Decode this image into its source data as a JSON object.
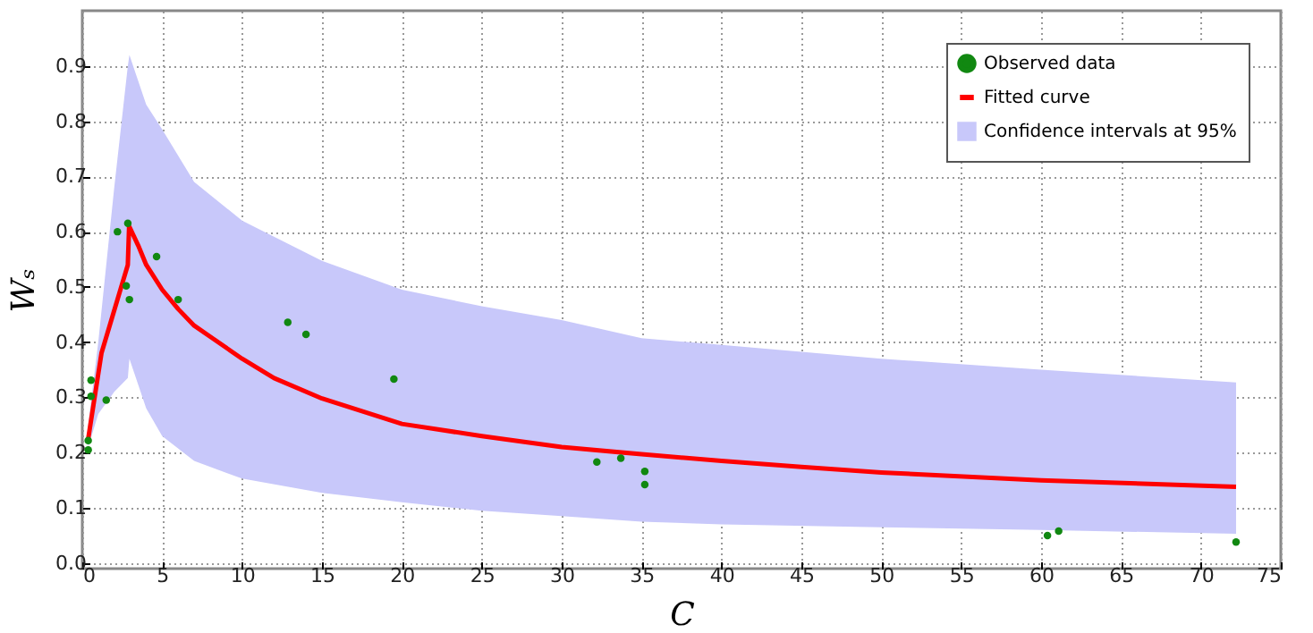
{
  "chart_data": {
    "type": "line",
    "xlabel": "C",
    "ylabel": "Wₛ",
    "xlim": [
      0,
      75
    ],
    "ylim": [
      -0.01,
      1.0
    ],
    "xticks": [
      0,
      5,
      10,
      15,
      20,
      25,
      30,
      35,
      40,
      45,
      50,
      55,
      60,
      65,
      70,
      75
    ],
    "yticks": [
      {
        "value": 0,
        "label": "0.0"
      },
      0.1,
      0.2,
      0.3,
      0.4,
      0.5,
      0.6,
      0.7,
      0.8,
      0.9
    ],
    "grid": true,
    "legend": "top right",
    "series": [
      {
        "name": "Observed data",
        "type": "scatter",
        "marker": "circle",
        "color": "#118811",
        "x": [
          0.37,
          0.37,
          0.55,
          0.55,
          1.5,
          2.2,
          2.85,
          2.75,
          2.95,
          4.65,
          6.0,
          12.86,
          14.0,
          19.5,
          32.2,
          33.7,
          35.2,
          35.2,
          60.4,
          61.1,
          72.2
        ],
        "values": [
          0.205,
          0.222,
          0.302,
          0.331,
          0.295,
          0.6,
          0.615,
          0.502,
          0.477,
          0.555,
          0.477,
          0.436,
          0.414,
          0.333,
          0.183,
          0.19,
          0.166,
          0.142,
          0.05,
          0.058,
          0.038
        ]
      },
      {
        "name": "Fitted curve",
        "color": "#ff0000",
        "x": [
          0.37,
          1.2,
          2.85,
          2.93,
          3.5,
          4,
          5,
          6,
          7,
          8,
          10,
          12,
          15,
          20,
          25,
          30,
          35,
          40,
          45,
          50,
          60,
          72.2
        ],
        "values": [
          0.225,
          0.38,
          0.54,
          0.61,
          0.575,
          0.54,
          0.495,
          0.46,
          0.43,
          0.41,
          0.37,
          0.335,
          0.298,
          0.252,
          0.23,
          0.21,
          0.197,
          0.185,
          0.174,
          0.164,
          0.15,
          0.138
        ]
      },
      {
        "name": "Confidence intervals at 95%",
        "type": "area",
        "color": "#c8c8fa",
        "x": [
          0.37,
          1,
          2,
          2.85,
          2.95,
          4,
          5,
          7,
          10,
          15,
          20,
          25,
          30,
          35,
          40,
          50,
          60,
          72.2
        ],
        "values": [
          null,
          null,
          null,
          null,
          null,
          null,
          null,
          null,
          null,
          null,
          null,
          null,
          null,
          null,
          null,
          null,
          null,
          null
        ],
        "lower": [
          0.21,
          0.27,
          0.31,
          0.335,
          0.37,
          0.28,
          0.23,
          0.185,
          0.153,
          0.127,
          0.11,
          0.095,
          0.085,
          0.075,
          0.07,
          0.065,
          0.06,
          0.053
        ],
        "upper": [
          0.25,
          0.4,
          0.68,
          0.9,
          0.92,
          0.83,
          0.785,
          0.69,
          0.62,
          0.547,
          0.495,
          0.465,
          0.44,
          0.407,
          0.395,
          0.37,
          0.35,
          0.327
        ]
      }
    ]
  }
}
